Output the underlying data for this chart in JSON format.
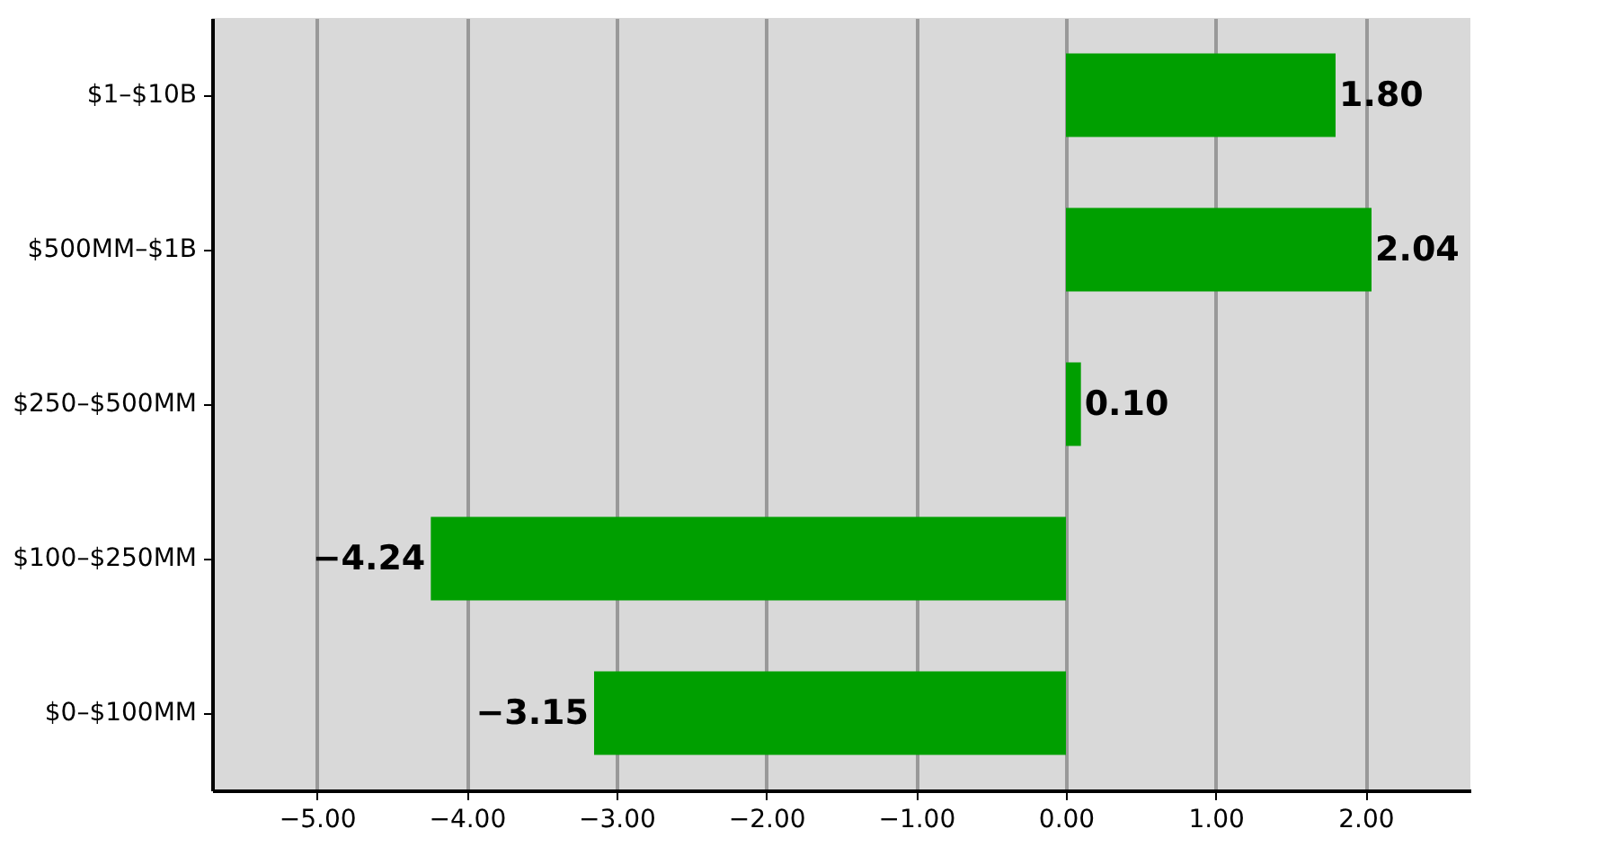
{
  "chart_data": {
    "type": "bar",
    "orientation": "horizontal",
    "categories": [
      "$1–$10B",
      "$500MM–$1B",
      "$250–$500MM",
      "$100–$250MM",
      "$0–$100MM"
    ],
    "values": [
      1.8,
      2.04,
      0.1,
      -4.24,
      -3.15
    ],
    "value_labels": [
      "1.80",
      "2.04",
      "0.10",
      "−4.24",
      "−3.15"
    ],
    "color": "#009f00",
    "xlim": [
      -5.7,
      2.7
    ],
    "xticks": [
      {
        "value": -5,
        "label": "−5.00"
      },
      {
        "value": -4,
        "label": "−4.00"
      },
      {
        "value": -3,
        "label": "−3.00"
      },
      {
        "value": -2,
        "label": "−2.00"
      },
      {
        "value": -1,
        "label": "−1.00"
      },
      {
        "value": 0,
        "label": "0.00"
      },
      {
        "value": 1,
        "label": "1.00"
      },
      {
        "value": 2,
        "label": "2.00"
      }
    ],
    "grid": "x"
  }
}
